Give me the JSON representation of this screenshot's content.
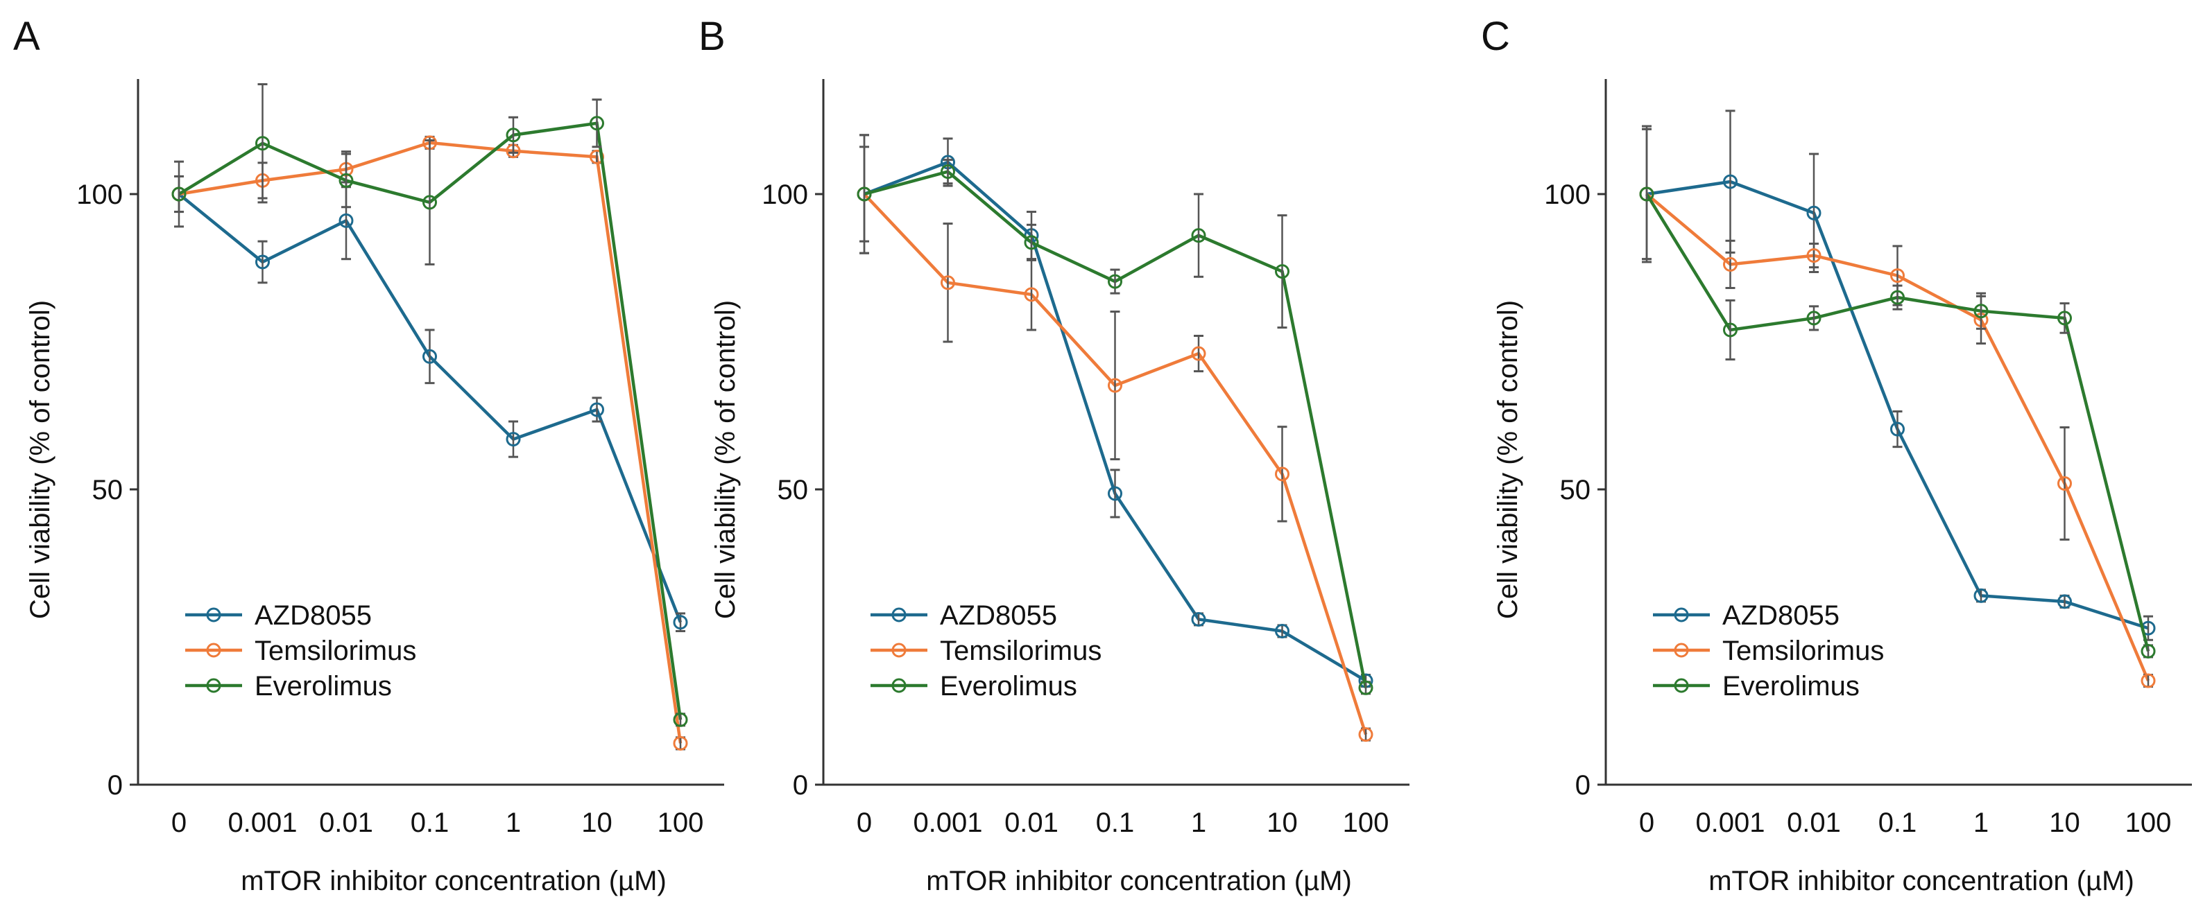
{
  "colors": {
    "AZD8055": "#1d6a8e",
    "Temsilorimus": "#ef7b3a",
    "Everolimus": "#2c7a2e",
    "error_bar": "#555555",
    "axis": "#333333"
  },
  "chart_data": [
    {
      "panel": "A",
      "type": "line",
      "xlabel": "mTOR inhibitor concentration (µM)",
      "ylabel": "Cell viability (% of control)",
      "categories": [
        "0",
        "0.001",
        "0.01",
        "0.1",
        "1",
        "10",
        "100"
      ],
      "ylim": [
        0,
        120
      ],
      "yticks": [
        "0",
        "50",
        "100"
      ],
      "grid": false,
      "legend": "bottom-left",
      "series": [
        {
          "name": "AZD8055",
          "values": [
            100,
            88.5,
            95.5,
            72.5,
            58.5,
            63.5,
            27.5
          ],
          "errors": [
            3,
            3.5,
            6.5,
            4.5,
            3,
            2,
            1.5
          ]
        },
        {
          "name": "Temsilorimus",
          "values": [
            100,
            102.3,
            104.2,
            108.7,
            107.3,
            106.3,
            7
          ],
          "errors": [
            3,
            3,
            3,
            1,
            1,
            1,
            1
          ]
        },
        {
          "name": "Everolimus",
          "values": [
            100,
            108.6,
            102.3,
            98.6,
            110,
            112,
            11
          ],
          "errors": [
            5.5,
            10,
            4.5,
            10.5,
            3,
            4,
            1
          ]
        }
      ]
    },
    {
      "panel": "B",
      "type": "line",
      "xlabel": "mTOR inhibitor concentration (µM)",
      "ylabel": "Cell viability (% of control)",
      "categories": [
        "0",
        "0.001",
        "0.01",
        "0.1",
        "1",
        "10",
        "100"
      ],
      "ylim": [
        0,
        120
      ],
      "yticks": [
        "0",
        "50",
        "100"
      ],
      "grid": false,
      "legend": "bottom-left",
      "series": [
        {
          "name": "AZD8055",
          "values": [
            100,
            105.4,
            93,
            49.3,
            28,
            26,
            17.6
          ],
          "errors": [
            10,
            4,
            4,
            4,
            1,
            1,
            1
          ]
        },
        {
          "name": "Temsilorimus",
          "values": [
            100,
            85,
            83,
            67.6,
            73,
            52.6,
            8.5
          ],
          "errors": [
            10,
            10,
            6,
            12.5,
            3,
            8,
            1
          ]
        },
        {
          "name": "Everolimus",
          "values": [
            100,
            103.8,
            91.8,
            85.2,
            93,
            86.9,
            16.4
          ],
          "errors": [
            8,
            2,
            3,
            2,
            7,
            9.5,
            1
          ]
        }
      ]
    },
    {
      "panel": "C",
      "type": "line",
      "xlabel": "mTOR inhibitor concentration (µM)",
      "ylabel": "Cell viability (% of control)",
      "categories": [
        "0",
        "0.001",
        "0.01",
        "0.1",
        "1",
        "10",
        "100"
      ],
      "ylim": [
        0,
        120
      ],
      "yticks": [
        "0",
        "50",
        "100"
      ],
      "grid": false,
      "legend": "bottom-left",
      "series": [
        {
          "name": "AZD8055",
          "values": [
            100,
            102.1,
            96.8,
            60.2,
            32,
            31,
            26.5
          ],
          "errors": [
            11.5,
            12,
            10,
            3,
            1,
            1,
            2
          ]
        },
        {
          "name": "Temsilorimus",
          "values": [
            100,
            88.1,
            89.6,
            86.2,
            78.7,
            51,
            17.6
          ],
          "errors": [
            11,
            4,
            2,
            5,
            4,
            9.5,
            1
          ]
        },
        {
          "name": "Everolimus",
          "values": [
            100,
            77,
            79,
            82.5,
            80.2,
            79,
            22.6
          ],
          "errors": [
            11,
            5,
            2,
            2,
            3,
            2.5,
            1
          ]
        }
      ]
    }
  ]
}
